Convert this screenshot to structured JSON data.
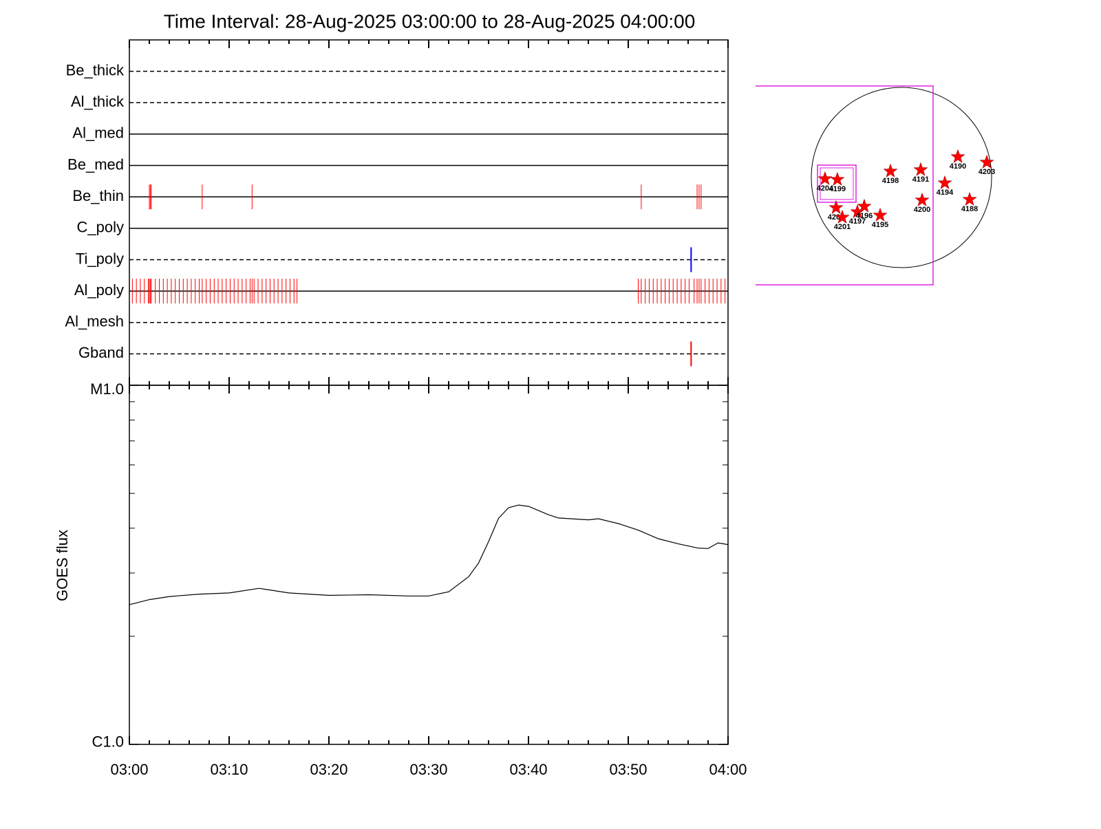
{
  "chart_data": [
    {
      "type": "events",
      "title": "Time Interval: 28-Aug-2025 03:00:00 to 28-Aug-2025 04:00:00",
      "xlim": [
        0,
        60
      ],
      "xticks": [
        0,
        10,
        20,
        30,
        40,
        50,
        60
      ],
      "xminorticks": [
        2,
        4,
        6,
        8,
        12,
        14,
        16,
        18,
        22,
        24,
        26,
        28,
        32,
        34,
        36,
        38,
        42,
        44,
        46,
        48,
        52,
        54,
        56,
        58
      ],
      "series": [
        {
          "name": "Be_thick",
          "style": "dashed",
          "color": "#ff0000",
          "events": []
        },
        {
          "name": "Al_thick",
          "style": "dashed",
          "color": "#ff0000",
          "events": []
        },
        {
          "name": "Al_med",
          "style": "solid",
          "color": "#ff0000",
          "events": []
        },
        {
          "name": "Be_med",
          "style": "solid",
          "color": "#ff0000",
          "events": []
        },
        {
          "name": "Be_thin",
          "style": "solid",
          "color": "#ff0000",
          "events": [
            2.0,
            2.1,
            2.2,
            7.3,
            12.3,
            51.3,
            56.9,
            57.1,
            57.3
          ]
        },
        {
          "name": "C_poly",
          "style": "solid",
          "color": "#ff0000",
          "events": []
        },
        {
          "name": "Ti_poly",
          "style": "dashed",
          "color": "#0000ff",
          "events": [
            56.3
          ]
        },
        {
          "name": "Al_poly",
          "style": "solid",
          "color": "#ff0000",
          "events": [
            0.3,
            0.7,
            1.1,
            1.5,
            1.9,
            2.0,
            2.1,
            2.2,
            2.6,
            3.0,
            3.4,
            3.8,
            4.2,
            4.6,
            5.0,
            5.4,
            5.8,
            6.2,
            6.6,
            7.0,
            7.3,
            7.7,
            8.1,
            8.5,
            8.9,
            9.3,
            9.7,
            10.1,
            10.5,
            10.9,
            11.3,
            11.7,
            12.1,
            12.3,
            12.5,
            12.9,
            13.3,
            13.7,
            14.1,
            14.5,
            14.9,
            15.3,
            15.7,
            16.1,
            16.5,
            16.8,
            51.0,
            51.3,
            51.7,
            52.1,
            52.5,
            52.9,
            53.3,
            53.7,
            54.1,
            54.5,
            54.9,
            55.3,
            55.7,
            56.1,
            56.6,
            56.9,
            57.1,
            57.3,
            57.7,
            58.1,
            58.5,
            58.9,
            59.3,
            59.7
          ]
        },
        {
          "name": "Al_mesh",
          "style": "dashed",
          "color": "#ff0000",
          "events": []
        },
        {
          "name": "Gband",
          "style": "dashed",
          "color": "#ff0000",
          "events": [
            56.3
          ]
        }
      ]
    },
    {
      "type": "line",
      "ylabel": "GOES flux",
      "log_scale": true,
      "color": "#000000",
      "xlim": [
        0,
        60
      ],
      "xticks": [
        {
          "value": 0,
          "label": "03:00"
        },
        {
          "value": 10,
          "label": "03:10"
        },
        {
          "value": 20,
          "label": "03:20"
        },
        {
          "value": 30,
          "label": "03:30"
        },
        {
          "value": 40,
          "label": "03:40"
        },
        {
          "value": 50,
          "label": "03:50"
        },
        {
          "value": 60,
          "label": "04:00"
        }
      ],
      "xminorticks": [
        2,
        4,
        6,
        8,
        12,
        14,
        16,
        18,
        22,
        24,
        26,
        28,
        32,
        34,
        36,
        38,
        42,
        44,
        46,
        48,
        52,
        54,
        56,
        58
      ],
      "ylim": [
        1e-06,
        1e-05
      ],
      "yticks": [
        {
          "value": 1e-06,
          "label": "C1.0"
        },
        {
          "value": 1e-05,
          "label": "M1.0"
        }
      ],
      "yminorticks": [
        2e-06,
        3e-06,
        4e-06,
        5e-06,
        6e-06,
        7e-06,
        8e-06,
        9e-06
      ],
      "x": [
        0,
        2,
        4,
        7,
        10,
        13,
        16,
        20,
        24,
        28,
        30,
        32,
        34,
        35,
        36,
        37,
        38,
        39,
        40,
        42,
        43,
        46,
        47,
        49,
        51,
        53,
        55,
        57,
        58,
        59,
        60
      ],
      "values": [
        2.45e-06,
        2.53e-06,
        2.58e-06,
        2.62e-06,
        2.64e-06,
        2.72e-06,
        2.64e-06,
        2.6e-06,
        2.61e-06,
        2.59e-06,
        2.59e-06,
        2.66e-06,
        2.93e-06,
        3.2e-06,
        3.67e-06,
        4.26e-06,
        4.56e-06,
        4.64e-06,
        4.6e-06,
        4.36e-06,
        4.27e-06,
        4.22e-06,
        4.25e-06,
        4.12e-06,
        3.95e-06,
        3.74e-06,
        3.62e-06,
        3.52e-06,
        3.51e-06,
        3.64e-06,
        3.6e-06
      ]
    },
    {
      "type": "map",
      "color": "#ff0000",
      "points": [
        {
          "label": "4204",
          "x": -814,
          "y": -15
        },
        {
          "label": "4199",
          "x": -682,
          "y": -22
        },
        {
          "label": "4198",
          "x": -117,
          "y": 66
        },
        {
          "label": "4191",
          "x": 205,
          "y": 81
        },
        {
          "label": "4190",
          "x": 601,
          "y": 220
        },
        {
          "label": "4203",
          "x": 909,
          "y": 161
        },
        {
          "label": "4194",
          "x": 462,
          "y": -59
        },
        {
          "label": "4200",
          "x": 220,
          "y": -242
        },
        {
          "label": "4188",
          "x": 726,
          "y": -235
        },
        {
          "label": "4202",
          "x": -696,
          "y": -323
        },
        {
          "label": "4201",
          "x": -630,
          "y": -425
        },
        {
          "label": "4197",
          "x": -469,
          "y": -367
        },
        {
          "label": "4196",
          "x": -396,
          "y": -308
        },
        {
          "label": "4195",
          "x": -227,
          "y": -403
        }
      ]
    }
  ]
}
